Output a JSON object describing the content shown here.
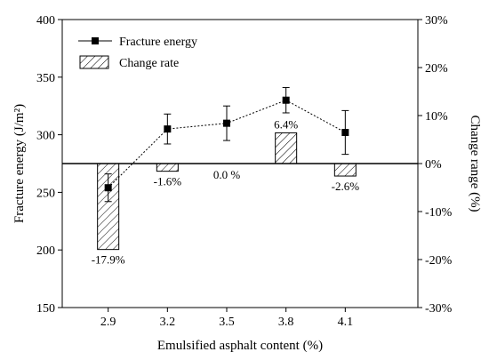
{
  "chart_data": {
    "type": "bar+line",
    "categories": [
      "2.9",
      "3.2",
      "3.5",
      "3.8",
      "4.1"
    ],
    "xlabel": "Emulsified asphalt content (%)",
    "ylabel_left": "Fracture energy  (J/m²)",
    "ylabel_right": "Change range (%)",
    "ylim_left": [
      150,
      400
    ],
    "ylim_right": [
      -30,
      30
    ],
    "yticks_left": [
      "150",
      "200",
      "250",
      "300",
      "350",
      "400"
    ],
    "yticks_right": [
      "-30%",
      "-20%",
      "-10%",
      "0%",
      "10%",
      "20%",
      "30%"
    ],
    "legend_position": "top-left",
    "series": [
      {
        "name": "Fracture energy",
        "kind": "line",
        "axis": "left",
        "values": [
          254,
          305,
          310,
          330,
          302
        ],
        "errors": [
          12,
          13,
          15,
          11,
          19
        ]
      },
      {
        "name": "Change rate",
        "kind": "bar",
        "axis": "right",
        "values": [
          -17.9,
          -1.6,
          0.0,
          6.4,
          -2.6
        ],
        "labels": [
          "-17.9%",
          "-1.6%",
          "0.0 %",
          "6.4%",
          "-2.6%"
        ]
      }
    ],
    "grid": false
  }
}
